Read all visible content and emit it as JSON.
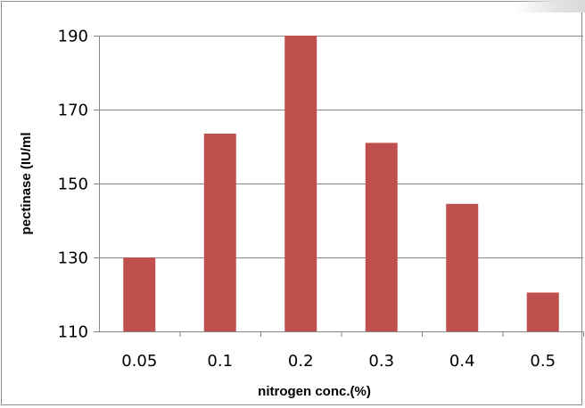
{
  "chart_data": {
    "type": "bar",
    "categories": [
      "0.05",
      "0.1",
      "0.2",
      "0.3",
      "0.4",
      "0.5"
    ],
    "values": [
      130,
      163.5,
      190,
      161,
      144.5,
      120.5
    ],
    "xlabel": "nitrogen conc.(%)",
    "ylabel": "pectinase (IU/ml",
    "ylim": [
      110,
      190
    ],
    "yticks": [
      "110",
      "130",
      "150",
      "170",
      "190"
    ],
    "grid": true,
    "legend": "none",
    "bar_color": "#c0504d",
    "grid_color": "#878787"
  }
}
